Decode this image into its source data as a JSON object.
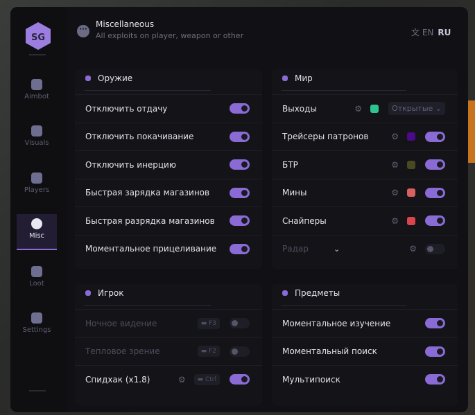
{
  "header": {
    "title": "Miscellaneous",
    "subtitle": "All exploits on player, weapon or other",
    "lang_en": "EN",
    "lang_ru": "RU"
  },
  "sidebar": {
    "items": [
      {
        "label": "Aimbot",
        "icon": "alien-icon"
      },
      {
        "label": "Visuals",
        "icon": "vr-goggles-icon"
      },
      {
        "label": "Players",
        "icon": "users-icon"
      },
      {
        "label": "Misc",
        "icon": "dots-icon",
        "active": true
      },
      {
        "label": "Loot",
        "icon": "briefcase-icon"
      },
      {
        "label": "Settings",
        "icon": "list-icon"
      }
    ]
  },
  "weapon": {
    "title": "Оружие",
    "rows": [
      {
        "label": "Отключить отдачу",
        "on": true
      },
      {
        "label": "Отключить покачивание",
        "on": true
      },
      {
        "label": "Отключить инерцию",
        "on": true
      },
      {
        "label": "Быстрая зарядка магазинов",
        "on": true
      },
      {
        "label": "Быстрая разрядка магазинов",
        "on": true
      },
      {
        "label": "Моментальное прицеливание",
        "on": true
      }
    ]
  },
  "world": {
    "title": "Мир",
    "rows": [
      {
        "label": "Выходы",
        "color": "#2fc48f",
        "select": "Открытые"
      },
      {
        "label": "Трейсеры патронов",
        "color": "#4a0a8a",
        "on": true
      },
      {
        "label": "БТР",
        "color": "#4a4a22",
        "on": true
      },
      {
        "label": "Мины",
        "color": "#d96060",
        "on": true
      },
      {
        "label": "Снайперы",
        "color": "#d8454f",
        "on": true
      },
      {
        "label": "Радар",
        "on": false
      }
    ]
  },
  "player": {
    "title": "Игрок",
    "rows": [
      {
        "label": "Ночное видение",
        "key": "F3",
        "on": false
      },
      {
        "label": "Тепловое зрение",
        "key": "F2",
        "on": false
      },
      {
        "label": "Спидхак (x1.8)",
        "key": "Ctrl",
        "on": true
      }
    ]
  },
  "items": {
    "title": "Предметы",
    "rows": [
      {
        "label": "Моментальное изучение",
        "on": true
      },
      {
        "label": "Моментальный поиск",
        "on": true
      },
      {
        "label": "Мультипоиск",
        "on": true
      }
    ]
  }
}
